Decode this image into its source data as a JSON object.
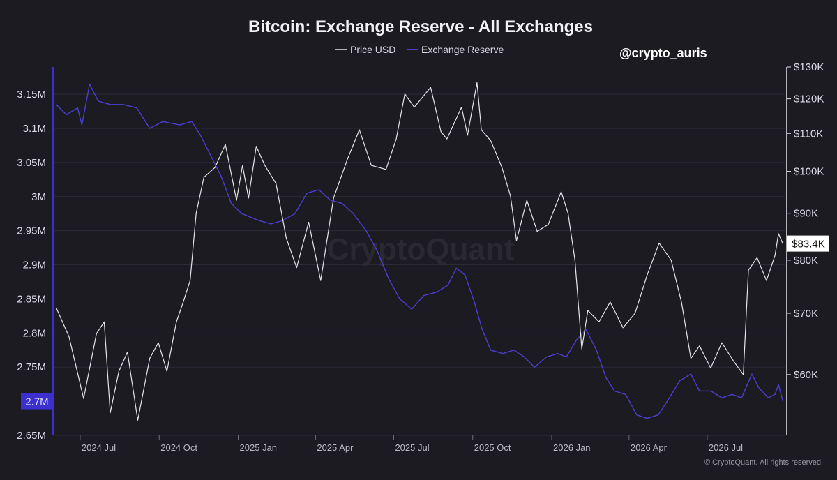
{
  "handle": "@crypto_auris",
  "watermark": "CryptoQuant",
  "footer": "© CryptoQuant. All rights reserved",
  "colors": {
    "background": "#1c1b22",
    "price": "#e6e6ea",
    "reserve": "#4a3fd1",
    "reserve_axis": "#3b2fd0",
    "grid": "#2c2b35"
  },
  "chart_data": {
    "type": "line",
    "title": "Bitcoin: Exchange Reserve - All Exchanges",
    "legend": {
      "placement": "top-center",
      "entries": [
        "Price USD",
        "Exchange Reserve"
      ]
    },
    "grid": true,
    "x_axis": {
      "range": [
        "2024-06-01",
        "2026-09-30"
      ],
      "ticks": [
        "2024 Jul",
        "2024 Oct",
        "2025 Jan",
        "2025 Apr",
        "2025 Jul",
        "2025 Oct",
        "2026 Jan",
        "2026 Apr",
        "2026 Jul"
      ]
    },
    "y_left": {
      "series": "Exchange Reserve",
      "range": [
        2650000,
        3190000
      ],
      "ticks": [
        {
          "value": 3150000,
          "label": "3.15M"
        },
        {
          "value": 3100000,
          "label": "3.1M"
        },
        {
          "value": 3050000,
          "label": "3.05M"
        },
        {
          "value": 3000000,
          "label": "3M"
        },
        {
          "value": 2950000,
          "label": "2.95M"
        },
        {
          "value": 2900000,
          "label": "2.9M"
        },
        {
          "value": 2850000,
          "label": "2.85M"
        },
        {
          "value": 2800000,
          "label": "2.8M"
        },
        {
          "value": 2750000,
          "label": "2.75M"
        },
        {
          "value": 2650000,
          "label": "2.65M"
        }
      ],
      "current_label": "2.7M",
      "current_value": 2700000
    },
    "y_right": {
      "series": "Price USD",
      "scale": "log",
      "range": [
        51500,
        130000
      ],
      "ticks": [
        {
          "value": 130000,
          "label": "$130K"
        },
        {
          "value": 120000,
          "label": "$120K"
        },
        {
          "value": 110000,
          "label": "$110K"
        },
        {
          "value": 100000,
          "label": "$100K"
        },
        {
          "value": 90000,
          "label": "$90K"
        },
        {
          "value": 80000,
          "label": "$80K"
        },
        {
          "value": 70000,
          "label": "$70K"
        },
        {
          "value": 60000,
          "label": "$60K"
        }
      ],
      "current_label": "$83.4K",
      "current_value": 83400
    },
    "series": [
      {
        "name": "Price USD",
        "color": "#e6e6ea",
        "points": [
          [
            "2024-06-03",
            71000
          ],
          [
            "2024-06-18",
            66000
          ],
          [
            "2024-07-05",
            56500
          ],
          [
            "2024-07-20",
            66500
          ],
          [
            "2024-07-29",
            68500
          ],
          [
            "2024-08-05",
            54500
          ],
          [
            "2024-08-15",
            60500
          ],
          [
            "2024-08-25",
            63500
          ],
          [
            "2024-09-06",
            53500
          ],
          [
            "2024-09-20",
            62500
          ],
          [
            "2024-09-30",
            65000
          ],
          [
            "2024-10-10",
            60500
          ],
          [
            "2024-10-21",
            68500
          ],
          [
            "2024-10-29",
            72000
          ],
          [
            "2024-11-06",
            76000
          ],
          [
            "2024-11-13",
            90000
          ],
          [
            "2024-11-22",
            98500
          ],
          [
            "2024-12-05",
            101000
          ],
          [
            "2024-12-17",
            107000
          ],
          [
            "2024-12-30",
            93000
          ],
          [
            "2025-01-06",
            101500
          ],
          [
            "2025-01-13",
            93500
          ],
          [
            "2025-01-22",
            106500
          ],
          [
            "2025-02-01",
            101500
          ],
          [
            "2025-02-14",
            97000
          ],
          [
            "2025-02-26",
            84500
          ],
          [
            "2025-03-10",
            78500
          ],
          [
            "2025-03-24",
            88000
          ],
          [
            "2025-04-07",
            76000
          ],
          [
            "2025-04-22",
            93500
          ],
          [
            "2025-05-08",
            103000
          ],
          [
            "2025-05-22",
            111000
          ],
          [
            "2025-06-05",
            101500
          ],
          [
            "2025-06-22",
            100500
          ],
          [
            "2025-07-04",
            108500
          ],
          [
            "2025-07-14",
            121500
          ],
          [
            "2025-07-25",
            117500
          ],
          [
            "2025-08-13",
            123500
          ],
          [
            "2025-08-25",
            110500
          ],
          [
            "2025-09-01",
            108500
          ],
          [
            "2025-09-18",
            117500
          ],
          [
            "2025-09-25",
            109500
          ],
          [
            "2025-10-06",
            125000
          ],
          [
            "2025-10-11",
            111000
          ],
          [
            "2025-10-22",
            108000
          ],
          [
            "2025-11-04",
            101000
          ],
          [
            "2025-11-14",
            94000
          ],
          [
            "2025-11-21",
            84000
          ],
          [
            "2025-12-03",
            93000
          ],
          [
            "2025-12-15",
            86000
          ],
          [
            "2025-12-28",
            87500
          ],
          [
            "2026-01-12",
            95000
          ],
          [
            "2026-01-20",
            90000
          ],
          [
            "2026-01-28",
            80000
          ],
          [
            "2026-02-05",
            64000
          ],
          [
            "2026-02-12",
            70500
          ],
          [
            "2026-02-25",
            68500
          ],
          [
            "2026-03-10",
            72000
          ],
          [
            "2026-03-25",
            67500
          ],
          [
            "2026-04-08",
            70000
          ],
          [
            "2026-04-22",
            77000
          ],
          [
            "2026-05-06",
            83500
          ],
          [
            "2026-05-20",
            80000
          ],
          [
            "2026-06-01",
            72000
          ],
          [
            "2026-06-12",
            62500
          ],
          [
            "2026-06-22",
            64500
          ],
          [
            "2026-07-05",
            61000
          ],
          [
            "2026-07-18",
            65000
          ],
          [
            "2026-08-01",
            62000
          ],
          [
            "2026-08-12",
            60000
          ],
          [
            "2026-08-18",
            78000
          ],
          [
            "2026-08-28",
            80500
          ],
          [
            "2026-09-08",
            76000
          ],
          [
            "2026-09-18",
            81000
          ],
          [
            "2026-09-22",
            85500
          ],
          [
            "2026-09-27",
            83400
          ]
        ]
      },
      {
        "name": "Exchange Reserve",
        "color": "#4a3fd1",
        "points": [
          [
            "2024-06-03",
            3135000
          ],
          [
            "2024-06-15",
            3120000
          ],
          [
            "2024-06-28",
            3130000
          ],
          [
            "2024-07-03",
            3105000
          ],
          [
            "2024-07-12",
            3165000
          ],
          [
            "2024-07-22",
            3140000
          ],
          [
            "2024-08-05",
            3135000
          ],
          [
            "2024-08-20",
            3135000
          ],
          [
            "2024-09-05",
            3130000
          ],
          [
            "2024-09-20",
            3100000
          ],
          [
            "2024-10-05",
            3110000
          ],
          [
            "2024-10-25",
            3105000
          ],
          [
            "2024-11-08",
            3110000
          ],
          [
            "2024-11-18",
            3090000
          ],
          [
            "2024-11-30",
            3060000
          ],
          [
            "2024-12-12",
            3030000
          ],
          [
            "2024-12-24",
            2990000
          ],
          [
            "2025-01-05",
            2975000
          ],
          [
            "2025-01-25",
            2965000
          ],
          [
            "2025-02-08",
            2960000
          ],
          [
            "2025-02-22",
            2965000
          ],
          [
            "2025-03-08",
            2975000
          ],
          [
            "2025-03-22",
            3005000
          ],
          [
            "2025-04-05",
            3010000
          ],
          [
            "2025-04-18",
            2995000
          ],
          [
            "2025-05-02",
            2990000
          ],
          [
            "2025-05-15",
            2975000
          ],
          [
            "2025-05-30",
            2950000
          ],
          [
            "2025-06-12",
            2920000
          ],
          [
            "2025-06-25",
            2880000
          ],
          [
            "2025-07-08",
            2850000
          ],
          [
            "2025-07-22",
            2835000
          ],
          [
            "2025-08-05",
            2855000
          ],
          [
            "2025-08-20",
            2860000
          ],
          [
            "2025-09-02",
            2870000
          ],
          [
            "2025-09-12",
            2895000
          ],
          [
            "2025-09-22",
            2885000
          ],
          [
            "2025-10-03",
            2845000
          ],
          [
            "2025-10-12",
            2805000
          ],
          [
            "2025-10-22",
            2775000
          ],
          [
            "2025-11-05",
            2770000
          ],
          [
            "2025-11-18",
            2775000
          ],
          [
            "2025-11-30",
            2765000
          ],
          [
            "2025-12-12",
            2750000
          ],
          [
            "2025-12-26",
            2765000
          ],
          [
            "2026-01-08",
            2770000
          ],
          [
            "2026-01-18",
            2765000
          ],
          [
            "2026-01-30",
            2790000
          ],
          [
            "2026-02-10",
            2805000
          ],
          [
            "2026-02-22",
            2775000
          ],
          [
            "2026-03-05",
            2735000
          ],
          [
            "2026-03-15",
            2715000
          ],
          [
            "2026-03-28",
            2710000
          ],
          [
            "2026-04-10",
            2680000
          ],
          [
            "2026-04-22",
            2675000
          ],
          [
            "2026-05-05",
            2680000
          ],
          [
            "2026-05-18",
            2705000
          ],
          [
            "2026-05-30",
            2730000
          ],
          [
            "2026-06-12",
            2740000
          ],
          [
            "2026-06-22",
            2715000
          ],
          [
            "2026-07-05",
            2715000
          ],
          [
            "2026-07-18",
            2705000
          ],
          [
            "2026-07-30",
            2710000
          ],
          [
            "2026-08-10",
            2705000
          ],
          [
            "2026-08-22",
            2740000
          ],
          [
            "2026-08-30",
            2720000
          ],
          [
            "2026-09-10",
            2705000
          ],
          [
            "2026-09-18",
            2710000
          ],
          [
            "2026-09-22",
            2725000
          ],
          [
            "2026-09-27",
            2700000
          ]
        ]
      }
    ]
  }
}
